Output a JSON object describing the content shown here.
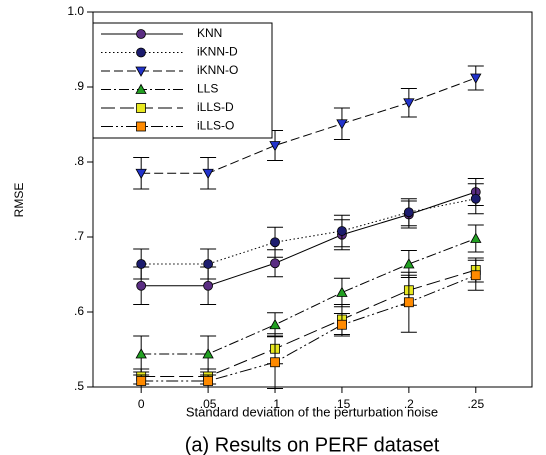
{
  "chart_data": {
    "type": "line",
    "xlabel": "Standard deviation of the perturbation noise",
    "ylabel": "RMSE",
    "caption": "(a) Results on PERF dataset",
    "x": [
      0,
      0.05,
      0.1,
      0.15,
      0.2,
      0.25
    ],
    "xlim": [
      -0.036,
      0.292
    ],
    "xticks": [
      0,
      {
        "value": 0.05,
        "label": ".05"
      },
      {
        "value": 0.1,
        "label": ".1"
      },
      {
        "value": 0.15,
        "label": ".15"
      },
      {
        "value": 0.2,
        "label": ".2"
      },
      {
        "value": 0.25,
        "label": ".25"
      }
    ],
    "ylim": [
      0.5,
      1.0
    ],
    "yticks": [
      {
        "value": 0.5,
        "label": ".5"
      },
      {
        "value": 0.6,
        "label": ".6"
      },
      {
        "value": 0.7,
        "label": ".7"
      },
      {
        "value": 0.8,
        "label": ".8"
      },
      {
        "value": 0.9,
        "label": ".9"
      },
      {
        "value": 1.0,
        "label": "1.0"
      }
    ],
    "legend": "upper left",
    "series": [
      {
        "name": "KNN",
        "color": "#5a2d82",
        "marker": "circle",
        "dash": "none",
        "values": [
          0.635,
          0.635,
          0.665,
          0.703,
          0.73,
          0.76
        ],
        "errors": [
          0.025,
          0.025,
          0.018,
          0.02,
          0.018,
          0.018
        ]
      },
      {
        "name": "iKNN-D",
        "color": "#1c1c6e",
        "marker": "circle",
        "dash": "1.5,2.5",
        "values": [
          0.664,
          0.664,
          0.693,
          0.708,
          0.733,
          0.751
        ],
        "errors": [
          0.02,
          0.02,
          0.02,
          0.021,
          0.018,
          0.02
        ]
      },
      {
        "name": "iKNN-O",
        "color": "#2233cc",
        "marker": "triangle-down",
        "dash": "9,4",
        "values": [
          0.785,
          0.785,
          0.822,
          0.851,
          0.879,
          0.912
        ],
        "errors": [
          0.021,
          0.021,
          0.02,
          0.021,
          0.019,
          0.016
        ]
      },
      {
        "name": "LLS",
        "color": "#22a022",
        "marker": "triangle-up",
        "dash": "10,3,2,3",
        "values": [
          0.544,
          0.544,
          0.583,
          0.626,
          0.664,
          0.698
        ],
        "errors": [
          0.024,
          0.024,
          0.016,
          0.019,
          0.018,
          0.018
        ]
      },
      {
        "name": "iLLS-D",
        "color": "#e8e820",
        "marker": "square",
        "dash": "14,5",
        "values": [
          0.514,
          0.514,
          0.551,
          0.59,
          0.629,
          0.656
        ],
        "errors": [
          0.01,
          0.01,
          0.02,
          0.02,
          0.02,
          0.016
        ]
      },
      {
        "name": "iLLS-O",
        "color": "#ff8a00",
        "marker": "square",
        "dash": "12,3,2,3,2,3",
        "values": [
          0.508,
          0.508,
          0.533,
          0.583,
          0.613,
          0.649
        ],
        "errors": [
          0.008,
          0.008,
          0.035,
          0.015,
          0.04,
          0.02
        ]
      }
    ]
  }
}
